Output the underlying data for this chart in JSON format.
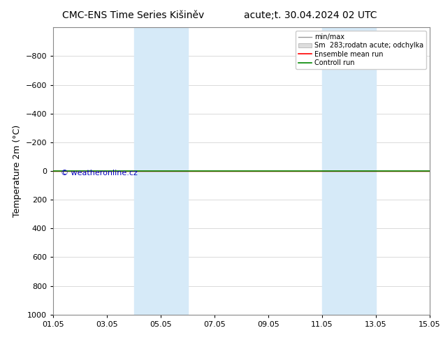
{
  "title_left": "CMC-ENS Time Series Kišiněv",
  "title_right": "acute;t. 30.04.2024 02 UTC",
  "ylabel": "Temperature 2m (°C)",
  "watermark": "© weatheronline.cz",
  "ylim_bottom": 1000,
  "ylim_top": -1000,
  "yticks": [
    -800,
    -600,
    -400,
    -200,
    0,
    200,
    400,
    600,
    800,
    1000
  ],
  "xstart_day": 1,
  "xend_day": 15,
  "xtick_labels": [
    "01.05",
    "03.05",
    "05.05",
    "07.05",
    "09.05",
    "11.05",
    "13.05",
    "15.05"
  ],
  "xtick_days": [
    1,
    3,
    5,
    7,
    9,
    11,
    13,
    15
  ],
  "shade_regions": [
    {
      "start": 4,
      "end": 6
    },
    {
      "start": 11,
      "end": 13
    }
  ],
  "shade_color": "#d6eaf8",
  "ensemble_mean_color": "#ff0000",
  "control_run_color": "#008800",
  "minmax_color": "#999999",
  "spread_color": "#dddddd",
  "watermark_color": "#0000bb",
  "legend_labels": [
    "min/max",
    "Sm  283;rodatn acute; odchylka",
    "Ensemble mean run",
    "Controll run"
  ],
  "background_color": "#ffffff",
  "grid_color": "#cccccc",
  "title_fontsize": 10,
  "axis_label_fontsize": 9,
  "tick_fontsize": 8,
  "legend_fontsize": 7,
  "watermark_fontsize": 8
}
